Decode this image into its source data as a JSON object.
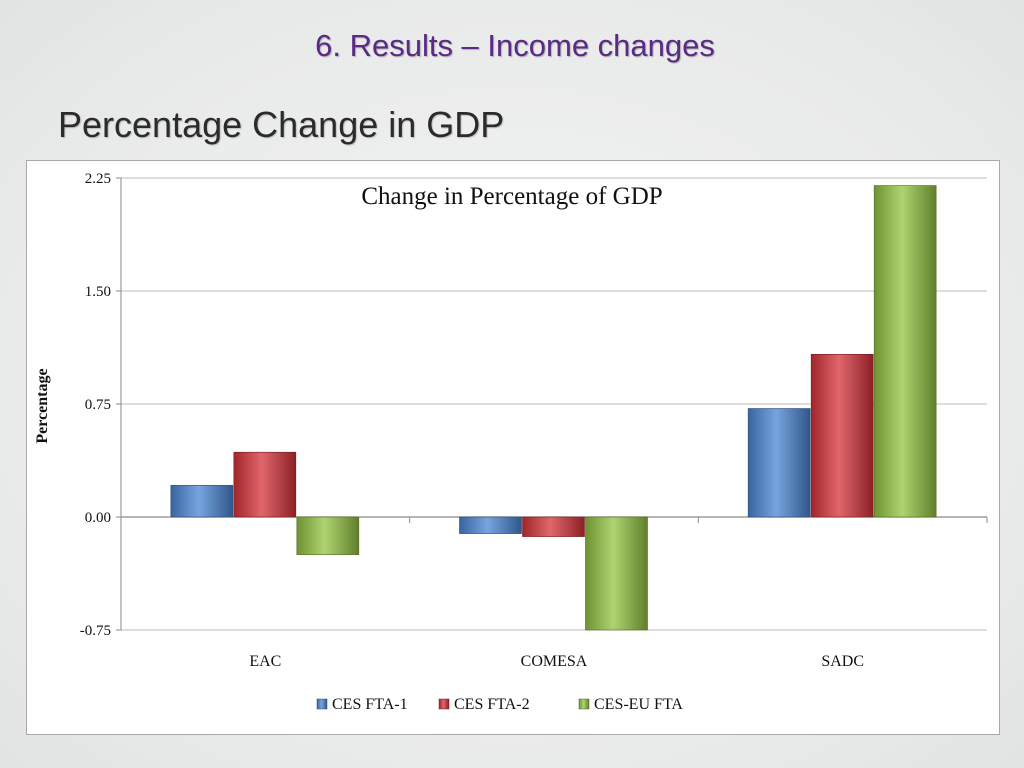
{
  "slide": {
    "heading": "6. Results – Income changes",
    "subtitle": "Percentage Change in GDP"
  },
  "colors": {
    "CES FTA-1": "#4a86d4",
    "CES FTA-2": "#d6333a",
    "CES-EU FTA": "#94c442"
  },
  "chart_data": {
    "type": "bar",
    "title": "Change in Percentage of GDP",
    "xlabel": "",
    "ylabel": "Percentage",
    "ylim": [
      -0.75,
      2.25
    ],
    "yticks": [
      "-0.75",
      "0.00",
      "0.75",
      "1.50",
      "2.25"
    ],
    "categories": [
      "EAC",
      "COMESA",
      "SADC"
    ],
    "series": [
      {
        "name": "CES FTA-1",
        "values": [
          0.21,
          -0.11,
          0.72
        ]
      },
      {
        "name": "CES FTA-2",
        "values": [
          0.43,
          -0.13,
          1.08
        ]
      },
      {
        "name": "CES-EU FTA",
        "values": [
          -0.25,
          -0.75,
          2.2
        ]
      }
    ],
    "grid": true,
    "legend": "bottom"
  }
}
